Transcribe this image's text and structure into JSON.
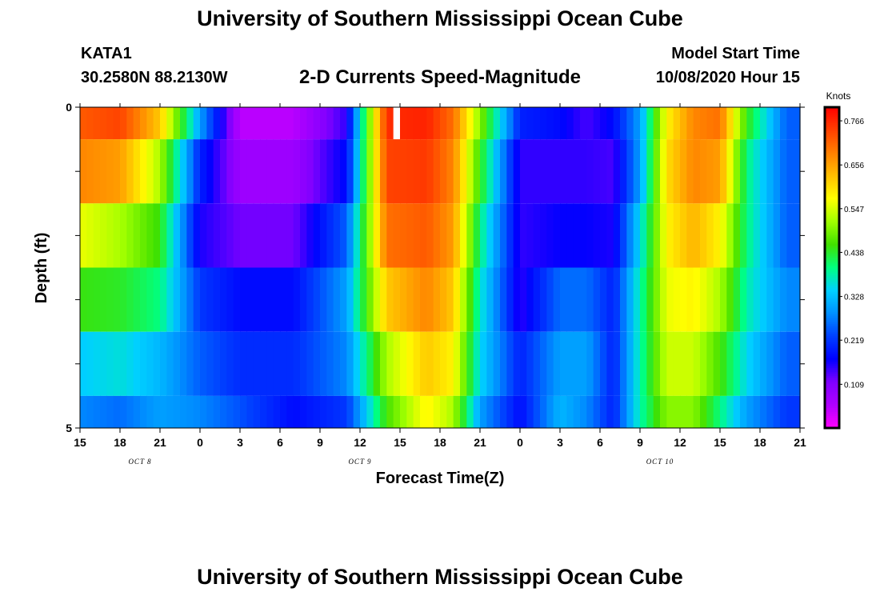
{
  "header": {
    "title": "University of Southern Mississippi Ocean Cube",
    "station_id": "KATA1",
    "station_coords": "30.2580N 88.2130W",
    "chart_title": "2-D Currents Speed-Magnitude",
    "model_start_label": "Model Start Time",
    "model_start_value": "10/08/2020 Hour 15"
  },
  "footer": {
    "title": "University of Southern Mississippi Ocean Cube"
  },
  "chart_data": {
    "type": "heatmap",
    "title": "2-D Currents Speed-Magnitude",
    "xlabel": "Forecast Time(Z)",
    "ylabel": "Depth (ft)",
    "x_tick_labels": [
      "15",
      "18",
      "21",
      "0",
      "3",
      "6",
      "9",
      "12",
      "15",
      "18",
      "21",
      "0",
      "3",
      "6",
      "9",
      "12",
      "15",
      "18",
      "21"
    ],
    "x_hours_start": 0,
    "x_hours_end": 54,
    "date_labels": [
      {
        "text": "OCT 8",
        "hour": 4.5
      },
      {
        "text": "OCT 9",
        "hour": 21
      },
      {
        "text": "OCT 10",
        "hour": 43.5
      }
    ],
    "y_tick_labels": [
      "0",
      "5"
    ],
    "ylim": [
      0,
      5
    ],
    "colorbar": {
      "label": "Knots",
      "min": 0.0,
      "max": 0.8,
      "tick_labels": [
        "0.766",
        "0.656",
        "0.547",
        "0.438",
        "0.328",
        "0.219",
        "0.109"
      ],
      "tick_values": [
        0.766,
        0.656,
        0.547,
        0.438,
        0.328,
        0.219,
        0.109
      ]
    },
    "depth_layers": [
      0.5,
      1.5,
      2.5,
      3.5,
      4.5,
      5.0
    ],
    "key_hours": [
      0,
      3,
      6,
      9,
      12,
      16,
      20,
      23,
      26,
      28,
      30,
      33,
      36,
      38,
      40,
      42,
      44,
      46,
      48,
      50,
      53
    ],
    "speeds": [
      [
        0.72,
        0.74,
        0.62,
        0.3,
        0.05,
        0.05,
        0.15,
        0.76,
        0.77,
        0.7,
        0.5,
        0.2,
        0.18,
        0.14,
        0.18,
        0.3,
        0.58,
        0.68,
        0.7,
        0.45,
        0.25
      ],
      [
        0.68,
        0.66,
        0.52,
        0.2,
        0.08,
        0.08,
        0.18,
        0.74,
        0.75,
        0.68,
        0.45,
        0.15,
        0.15,
        0.15,
        0.14,
        0.3,
        0.6,
        0.68,
        0.66,
        0.4,
        0.25
      ],
      [
        0.56,
        0.52,
        0.45,
        0.16,
        0.12,
        0.12,
        0.25,
        0.7,
        0.72,
        0.66,
        0.4,
        0.15,
        0.17,
        0.17,
        0.16,
        0.35,
        0.58,
        0.64,
        0.58,
        0.4,
        0.25
      ],
      [
        0.45,
        0.44,
        0.4,
        0.22,
        0.18,
        0.18,
        0.3,
        0.62,
        0.68,
        0.62,
        0.37,
        0.15,
        0.26,
        0.26,
        0.2,
        0.38,
        0.56,
        0.58,
        0.52,
        0.38,
        0.28
      ],
      [
        0.34,
        0.36,
        0.32,
        0.25,
        0.21,
        0.21,
        0.28,
        0.52,
        0.62,
        0.58,
        0.35,
        0.2,
        0.3,
        0.3,
        0.2,
        0.38,
        0.54,
        0.54,
        0.46,
        0.35,
        0.25
      ],
      [
        0.28,
        0.26,
        0.3,
        0.28,
        0.24,
        0.18,
        0.22,
        0.46,
        0.58,
        0.52,
        0.3,
        0.18,
        0.32,
        0.28,
        0.2,
        0.38,
        0.5,
        0.5,
        0.4,
        0.3,
        0.22
      ]
    ],
    "missing_cells": [
      {
        "hour": 23.5,
        "layer": 0
      }
    ]
  },
  "colors": {
    "colormap": [
      "#ff00ff",
      "#b000ff",
      "#8000ff",
      "#0000ff",
      "#0040ff",
      "#0090ff",
      "#00d0ff",
      "#00ff80",
      "#40e000",
      "#a0ff00",
      "#ffff00",
      "#ffc000",
      "#ff8000",
      "#ff4000",
      "#ff0000"
    ]
  }
}
